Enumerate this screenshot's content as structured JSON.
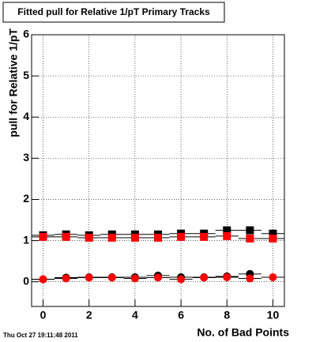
{
  "chart_data": {
    "type": "scatter",
    "title": "Fitted pull for Relative 1/pT Primary Tracks",
    "xlabel": "No. of Bad Points",
    "ylabel": "pull for Relative 1/pT",
    "timestamp": "Thu Oct 27 19:11:48 2011",
    "x": [
      0,
      1,
      2,
      3,
      4,
      5,
      6,
      7,
      8,
      9,
      10
    ],
    "xerr": 0.5,
    "series": [
      {
        "color": "#000000",
        "marker": "square",
        "values": [
          1.13,
          1.15,
          1.13,
          1.15,
          1.15,
          1.15,
          1.17,
          1.17,
          1.25,
          1.25,
          1.17
        ]
      },
      {
        "color": "#ff0000",
        "marker": "square",
        "values": [
          1.09,
          1.09,
          1.07,
          1.07,
          1.07,
          1.07,
          1.09,
          1.09,
          1.11,
          1.05,
          1.05
        ]
      },
      {
        "color": "#000000",
        "marker": "circle",
        "values": [
          0.06,
          0.1,
          0.11,
          0.11,
          0.11,
          0.15,
          0.11,
          0.11,
          0.13,
          0.19,
          null
        ]
      },
      {
        "color": "#ff0000",
        "marker": "circle",
        "values": [
          0.06,
          0.08,
          0.1,
          0.1,
          0.08,
          0.1,
          0.06,
          0.1,
          0.11,
          0.08,
          0.11
        ]
      }
    ],
    "xlim": [
      -0.5,
      10.5
    ],
    "ylim": [
      -0.6,
      6
    ],
    "xticks": [
      0,
      2,
      4,
      6,
      8,
      10
    ],
    "yticks": [
      0,
      1,
      2,
      3,
      4,
      5,
      6
    ],
    "grid": true
  }
}
